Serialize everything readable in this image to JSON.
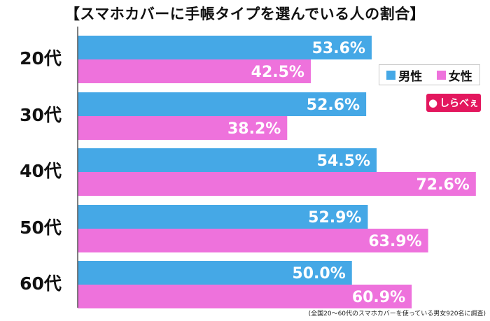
{
  "title": "【スマホカバーに手帳タイプを選んでいる人の割合】",
  "footnote": "(全国20～60代のスマホカバーを使っている男女920名に調査)",
  "logo": {
    "icon": "balloon-mark-icon",
    "text": "しらべぇ",
    "color": "#e3175e"
  },
  "chart_data": {
    "type": "bar",
    "orientation": "horizontal",
    "categories": [
      "20代",
      "30代",
      "40代",
      "50代",
      "60代"
    ],
    "series": [
      {
        "name": "男性",
        "values": [
          53.6,
          52.6,
          54.5,
          52.9,
          50.0
        ],
        "labels": [
          "53.6%",
          "52.6%",
          "54.5%",
          "52.9%",
          "50.0%"
        ],
        "color": "#45a8e6"
      },
      {
        "name": "女性",
        "values": [
          42.5,
          38.2,
          72.6,
          63.9,
          60.9
        ],
        "labels": [
          "42.5%",
          "38.2%",
          "72.6%",
          "63.9%",
          "60.9%"
        ],
        "color": "#ee72dc"
      }
    ],
    "xlim": [
      0,
      80
    ],
    "legend_position": "top-right",
    "grid": false
  }
}
